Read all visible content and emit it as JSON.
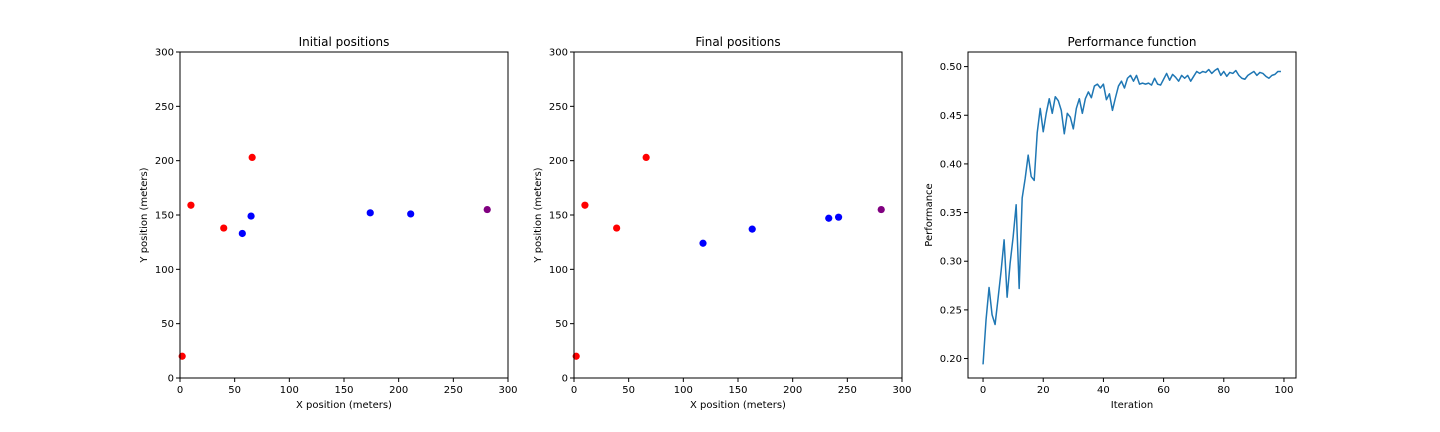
{
  "chart_data": [
    {
      "type": "scatter",
      "title": "Initial positions",
      "xlabel": "X position (meters)",
      "ylabel": "Y position (meters)",
      "xlim": [
        0,
        300
      ],
      "ylim": [
        0,
        300
      ],
      "xticks": [
        0,
        50,
        100,
        150,
        200,
        250,
        300
      ],
      "yticks": [
        0,
        50,
        100,
        150,
        200,
        250,
        300
      ],
      "grid": false,
      "series": [
        {
          "color": "#ff0000",
          "points": [
            [
              2,
              20
            ],
            [
              10,
              159
            ],
            [
              40,
              138
            ],
            [
              66,
              203
            ]
          ]
        },
        {
          "color": "#0000ff",
          "points": [
            [
              57,
              133
            ],
            [
              65,
              149
            ],
            [
              174,
              152
            ],
            [
              211,
              151
            ]
          ]
        },
        {
          "color": "#800080",
          "points": [
            [
              281,
              155
            ]
          ]
        }
      ]
    },
    {
      "type": "scatter",
      "title": "Final positions",
      "xlabel": "X position (meters)",
      "ylabel": "Y position (meters)",
      "xlim": [
        0,
        300
      ],
      "ylim": [
        0,
        300
      ],
      "xticks": [
        0,
        50,
        100,
        150,
        200,
        250,
        300
      ],
      "yticks": [
        0,
        50,
        100,
        150,
        200,
        250,
        300
      ],
      "grid": false,
      "series": [
        {
          "color": "#ff0000",
          "points": [
            [
              2,
              20
            ],
            [
              10,
              159
            ],
            [
              39,
              138
            ],
            [
              66,
              203
            ]
          ]
        },
        {
          "color": "#0000ff",
          "points": [
            [
              118,
              124
            ],
            [
              163,
              137
            ],
            [
              233,
              147
            ],
            [
              242,
              148
            ]
          ]
        },
        {
          "color": "#800080",
          "points": [
            [
              281,
              155
            ]
          ]
        }
      ]
    },
    {
      "type": "line",
      "title": "Performance function",
      "xlabel": "Iteration",
      "ylabel": "Performance",
      "xlim": [
        -5,
        104
      ],
      "ylim": [
        0.18,
        0.515
      ],
      "xticks": [
        0,
        20,
        40,
        60,
        80,
        100
      ],
      "yticks": [
        0.2,
        0.25,
        0.3,
        0.35,
        0.4,
        0.45,
        0.5
      ],
      "ytick_labels": [
        "0.20",
        "0.25",
        "0.30",
        "0.35",
        "0.40",
        "0.45",
        "0.50"
      ],
      "grid": false,
      "series": [
        {
          "color": "#1f77b4",
          "x": [
            0,
            1,
            2,
            3,
            4,
            5,
            6,
            7,
            8,
            9,
            10,
            11,
            12,
            13,
            14,
            15,
            16,
            17,
            18,
            19,
            20,
            21,
            22,
            23,
            24,
            25,
            26,
            27,
            28,
            29,
            30,
            31,
            32,
            33,
            34,
            35,
            36,
            37,
            38,
            39,
            40,
            41,
            42,
            43,
            44,
            45,
            46,
            47,
            48,
            49,
            50,
            51,
            52,
            53,
            54,
            55,
            56,
            57,
            58,
            59,
            60,
            61,
            62,
            63,
            64,
            65,
            66,
            67,
            68,
            69,
            70,
            71,
            72,
            73,
            74,
            75,
            76,
            77,
            78,
            79,
            80,
            81,
            82,
            83,
            84,
            85,
            86,
            87,
            88,
            89,
            90,
            91,
            92,
            93,
            94,
            95,
            96,
            97,
            98,
            99
          ],
          "y": [
            0.194,
            0.24,
            0.273,
            0.245,
            0.235,
            0.262,
            0.29,
            0.322,
            0.263,
            0.298,
            0.325,
            0.358,
            0.272,
            0.365,
            0.385,
            0.409,
            0.387,
            0.383,
            0.432,
            0.457,
            0.433,
            0.452,
            0.467,
            0.452,
            0.469,
            0.465,
            0.455,
            0.431,
            0.452,
            0.448,
            0.436,
            0.457,
            0.467,
            0.452,
            0.467,
            0.474,
            0.468,
            0.48,
            0.482,
            0.478,
            0.482,
            0.466,
            0.472,
            0.455,
            0.468,
            0.48,
            0.485,
            0.478,
            0.488,
            0.491,
            0.485,
            0.491,
            0.482,
            0.483,
            0.482,
            0.483,
            0.481,
            0.488,
            0.482,
            0.481,
            0.487,
            0.493,
            0.486,
            0.492,
            0.489,
            0.485,
            0.491,
            0.488,
            0.491,
            0.485,
            0.49,
            0.495,
            0.493,
            0.495,
            0.494,
            0.497,
            0.493,
            0.496,
            0.498,
            0.491,
            0.495,
            0.49,
            0.494,
            0.493,
            0.496,
            0.491,
            0.488,
            0.487,
            0.491,
            0.493,
            0.495,
            0.491,
            0.494,
            0.493,
            0.49,
            0.488,
            0.491,
            0.492,
            0.495,
            0.495
          ]
        }
      ]
    }
  ]
}
